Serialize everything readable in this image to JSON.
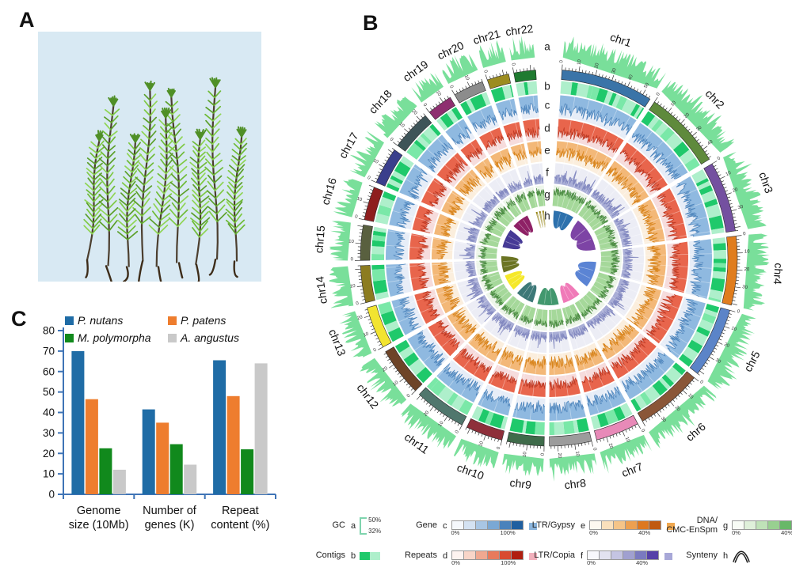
{
  "panels": {
    "photo_label": "A",
    "circos_label": "B",
    "barchart_label": "C"
  },
  "photo": {
    "description": "moss plants photograph",
    "background": "#d8e9f3",
    "stem_color": "#3d2c19",
    "foliage_colors": [
      "#7ec943",
      "#6fbb37",
      "#8fd554",
      "#5ca02b"
    ],
    "bud_color": "#4f8f26"
  },
  "circos": {
    "track_letters": [
      "a",
      "b",
      "c",
      "d",
      "e",
      "f",
      "g",
      "h"
    ],
    "chromosomes": [
      {
        "name": "chr1",
        "size_mb": 55,
        "color": "#3a74a8"
      },
      {
        "name": "chr2",
        "size_mb": 47,
        "color": "#5f8a3c"
      },
      {
        "name": "chr3",
        "size_mb": 42,
        "color": "#7450a0"
      },
      {
        "name": "chr4",
        "size_mb": 41,
        "color": "#e07d1e"
      },
      {
        "name": "chr5",
        "size_mb": 42,
        "color": "#5b84c8"
      },
      {
        "name": "chr6",
        "size_mb": 40,
        "color": "#8a5638"
      },
      {
        "name": "chr7",
        "size_mb": 26,
        "color": "#e88ab8"
      },
      {
        "name": "chr8",
        "size_mb": 25,
        "color": "#9c9c9c"
      },
      {
        "name": "chr9",
        "size_mb": 22,
        "color": "#3f6b4a"
      },
      {
        "name": "chr10",
        "size_mb": 22,
        "color": "#8e2f3a"
      },
      {
        "name": "chr11",
        "size_mb": 31,
        "color": "#50776d"
      },
      {
        "name": "chr12",
        "size_mb": 29,
        "color": "#6e4428"
      },
      {
        "name": "chr13",
        "size_mb": 25,
        "color": "#f2e430"
      },
      {
        "name": "chr14",
        "size_mb": 22,
        "color": "#8c7c20"
      },
      {
        "name": "chr15",
        "size_mb": 21,
        "color": "#59603f"
      },
      {
        "name": "chr16",
        "size_mb": 20,
        "color": "#8e1e1e"
      },
      {
        "name": "chr17",
        "size_mb": 22,
        "color": "#3a3f8c"
      },
      {
        "name": "chr18",
        "size_mb": 24,
        "color": "#3e5458"
      },
      {
        "name": "chr19",
        "size_mb": 15,
        "color": "#8e2f70"
      },
      {
        "name": "chr20",
        "size_mb": 18,
        "color": "#8c8c8c"
      },
      {
        "name": "chr21",
        "size_mb": 13,
        "color": "#9c8c20"
      },
      {
        "name": "chr22",
        "size_mb": 13,
        "color": "#1f7a30"
      }
    ],
    "tracks": [
      {
        "letter": "a",
        "name": "GC",
        "style": "hist-out",
        "fill": "#79df9a",
        "line": "#58c77e",
        "bg": "",
        "base": 0.45,
        "amp": 0.8
      },
      {
        "letter": "b",
        "name": "Contigs",
        "style": "blocks",
        "colors": [
          "#1fc96b",
          "#aeefcb",
          "#7ae8a8"
        ]
      },
      {
        "letter": "c",
        "name": "Gene",
        "style": "hist-hang",
        "fill": "#8fb9e0",
        "line": "#4f86bd",
        "bg": "#e7edf7",
        "base": 0.62,
        "amp": 0.55
      },
      {
        "letter": "d",
        "name": "Repeats",
        "style": "hist-hang",
        "fill": "#e8654c",
        "line": "#c03a24",
        "bg": "#f6dcdc",
        "base": 0.62,
        "amp": 0.5
      },
      {
        "letter": "e",
        "name": "LTR/Gypsy",
        "style": "hist-hang",
        "fill": "#f3b878",
        "line": "#d9861f",
        "bg": "#fbeedd",
        "base": 0.55,
        "amp": 0.6
      },
      {
        "letter": "f",
        "name": "LTR/Copia",
        "style": "hist-out",
        "fill": "#a9aed6",
        "line": "#8389c0",
        "bg": "#ecedf5",
        "base": 0.3,
        "amp": 0.45
      },
      {
        "letter": "g",
        "name": "DNA/CMC-EnSpm",
        "style": "hist-out",
        "fill": "#a5d89a",
        "line": "#4f8f46",
        "bg": "#edf5e9",
        "base": 0.72,
        "amp": 0.4
      },
      {
        "letter": "h",
        "name": "Synteny",
        "style": "ribbons"
      }
    ],
    "synteny_ribbons": [
      {
        "color": "#2d71ad",
        "start": 6,
        "end": 31
      },
      {
        "color": "#7d44a5",
        "start": 38,
        "end": 80
      },
      {
        "color": "#5b84d4",
        "start": 95,
        "end": 127
      },
      {
        "color": "#f07ab8",
        "start": 140,
        "end": 162
      },
      {
        "color": "#42986e",
        "start": 168,
        "end": 194
      },
      {
        "color": "#3d7878",
        "start": 200,
        "end": 222
      },
      {
        "color": "#f5e829",
        "start": 228,
        "end": 248
      },
      {
        "color": "#6b7423",
        "start": 252,
        "end": 272
      },
      {
        "color": "#463a96",
        "start": 283,
        "end": 306
      },
      {
        "color": "#8e2166",
        "start": 312,
        "end": 333
      },
      {
        "color": "#958414",
        "start": 344,
        "end": 346
      },
      {
        "color": "#958414",
        "start": 348,
        "end": 350
      },
      {
        "color": "#958414",
        "start": 352,
        "end": 354
      }
    ],
    "legend": {
      "rows": [
        [
          {
            "label": "GC",
            "letter": "a",
            "kind": "gc",
            "values": [
              "50%",
              "32%"
            ],
            "color": "#7fd4ae"
          },
          {
            "label": "Gene",
            "letter": "c",
            "kind": "scale",
            "cells": [
              "#f5f8fc",
              "#d4e2f2",
              "#a8c6e4",
              "#7aa8d4",
              "#4a82bc",
              "#1f5fa0"
            ],
            "min": "0%",
            "max": "100%",
            "patch": "#8ab4dc"
          },
          {
            "label": "LTR/Gypsy",
            "letter": "e",
            "kind": "scale",
            "cells": [
              "#fdf8f0",
              "#fae0bc",
              "#f5c488",
              "#eda050",
              "#dd7820",
              "#c05a10"
            ],
            "min": "0%",
            "max": "40%",
            "patch": "#f0a850"
          },
          {
            "label": "DNA/\nCMC-EnSpm",
            "letter": "g",
            "kind": "scale",
            "cells": [
              "#f8fcf6",
              "#dff0da",
              "#bfe2b8",
              "#98d090",
              "#68b868",
              "#2f9838"
            ],
            "min": "0%",
            "max": "40%",
            "patch": "#b8e8a8"
          }
        ],
        [
          {
            "label": "Contigs",
            "letter": "b",
            "kind": "swatch",
            "colors": [
              "#1fc96b",
              "#aeefcb"
            ]
          },
          {
            "label": "Repeats",
            "letter": "d",
            "kind": "scale",
            "cells": [
              "#fdf3f0",
              "#f8d5c8",
              "#f0a890",
              "#e87a5c",
              "#d94a30",
              "#b01f10"
            ],
            "min": "0%",
            "max": "100%",
            "patch": "#f2b0bc"
          },
          {
            "label": "LTR/Copia",
            "letter": "f",
            "kind": "scale",
            "cells": [
              "#f8f8fc",
              "#e2e2f0",
              "#c4c4e2",
              "#a0a0d0",
              "#7a7ac0",
              "#5540a8"
            ],
            "min": "0%",
            "max": "40%",
            "patch": "#a8a8d8"
          },
          {
            "label": "Synteny",
            "letter": "h",
            "kind": "arch",
            "color": "#1a1a1a"
          }
        ]
      ]
    }
  },
  "chart_data": [
    {
      "type": "bar",
      "title": "",
      "categories": [
        "Genome size (10Mb)",
        "Number of genes (K)",
        "Repeat content (%)"
      ],
      "categories_lines": [
        [
          "Genome",
          "size (10Mb)"
        ],
        [
          "Number of",
          "genes (K)"
        ],
        [
          "Repeat",
          "content (%)"
        ]
      ],
      "series": [
        {
          "name": "P. nutans",
          "color": "#1f6ca6",
          "values": [
            70,
            41.5,
            65.5
          ]
        },
        {
          "name": "P. patens",
          "color": "#ee7d2e",
          "values": [
            46.5,
            35,
            48
          ]
        },
        {
          "name": "M. polymorpha",
          "color": "#11891c",
          "values": [
            22.5,
            24.5,
            22
          ]
        },
        {
          "name": "A. angustus",
          "color": "#c9c9c9",
          "values": [
            12,
            14.5,
            64
          ]
        }
      ],
      "xlabel": "",
      "ylabel": "",
      "ylim": [
        0,
        80
      ],
      "ytick_step": 10,
      "axis_color": "#3f74b6",
      "grid": false,
      "legend_position": "top"
    },
    {
      "type": "circos",
      "title": "",
      "categories": [
        "chr1",
        "chr2",
        "chr3",
        "chr4",
        "chr5",
        "chr6",
        "chr7",
        "chr8",
        "chr9",
        "chr10",
        "chr11",
        "chr12",
        "chr13",
        "chr14",
        "chr15",
        "chr16",
        "chr17",
        "chr18",
        "chr19",
        "chr20",
        "chr21",
        "chr22"
      ],
      "rings": [
        "a: GC content histogram (bracket scale 50% / 32%)",
        "b: Contigs blocks",
        "c: Gene density 0-100%",
        "d: Repeats density 0-100%",
        "e: LTR/Gypsy density 0-40%",
        "f: LTR/Copia density 0-40%",
        "g: DNA/CMC-EnSpm density 0-40%",
        "h: Synteny ribbons"
      ],
      "tick_unit": "Mb, labeled every 10"
    }
  ]
}
